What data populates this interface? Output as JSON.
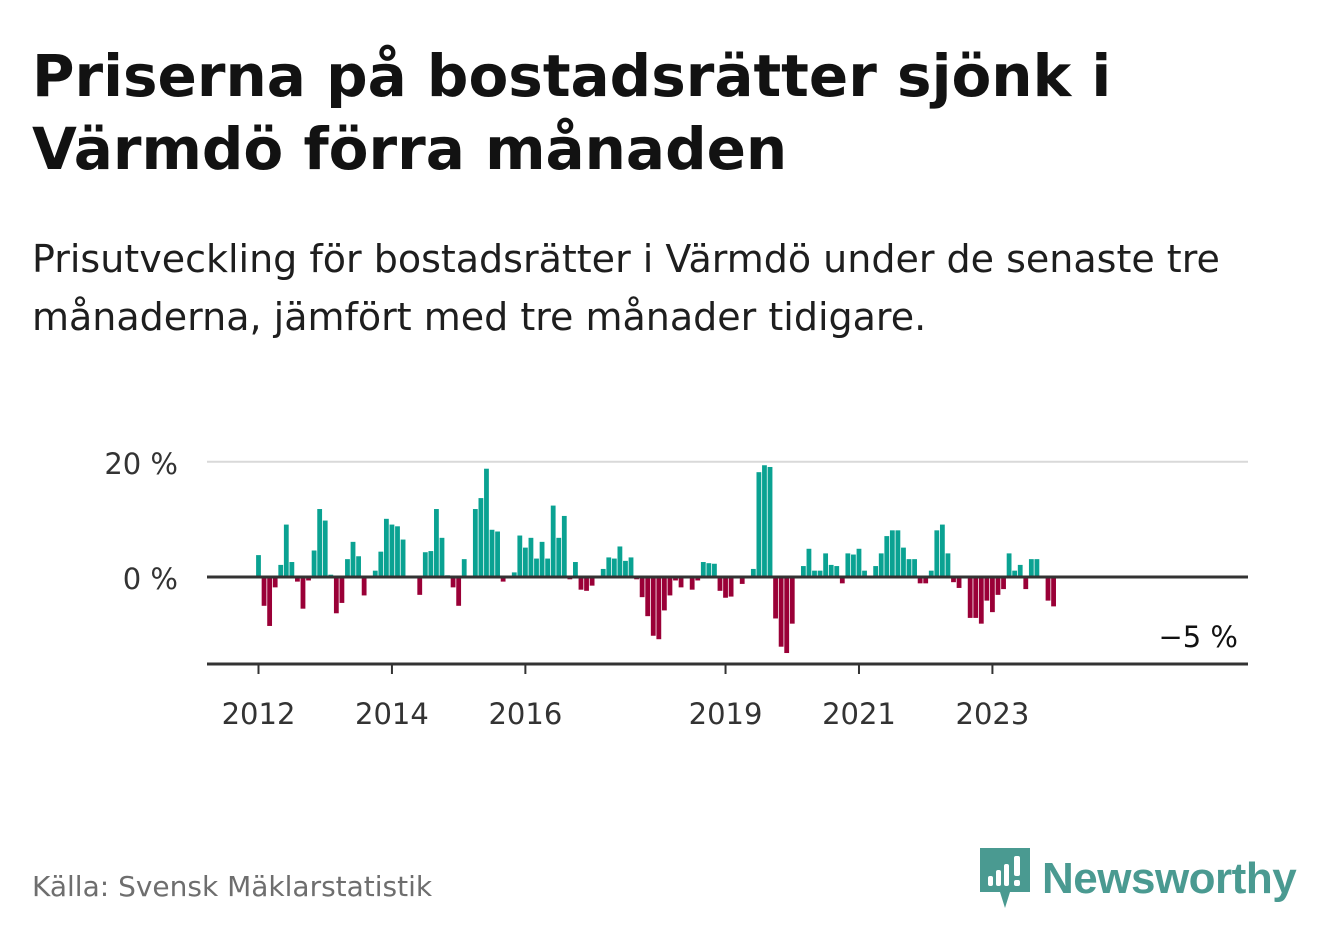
{
  "header": {
    "title": "Priserna på bostadsrätter sjönk i Värmdö förra månaden",
    "subtitle": "Prisutveckling för bostadsrätter i Värmdö under de senaste tre månaderna, jämfört med tre månader tidigare."
  },
  "footer": {
    "source": "Källa: Svensk Mäklarstatistik",
    "brand": "Newsworthy"
  },
  "colors": {
    "positive": "#0aa292",
    "negative": "#9a0037",
    "axis": "#333333",
    "grid": "#d9d9d9",
    "brand": "#4a9a91"
  },
  "chart_data": {
    "type": "bar",
    "x_start": "2012-01",
    "ylabel": "",
    "ylim": [
      -15,
      20
    ],
    "y_ticks": [
      {
        "value": 0,
        "label": "0 %"
      },
      {
        "value": 20,
        "label": "20 %"
      }
    ],
    "x_ticks": [
      {
        "index": 0,
        "label": "2012"
      },
      {
        "index": 24,
        "label": "2014"
      },
      {
        "index": 48,
        "label": "2016"
      },
      {
        "index": 84,
        "label": "2019"
      },
      {
        "index": 108,
        "label": "2021"
      },
      {
        "index": 132,
        "label": "2023"
      }
    ],
    "last_label": "−5 %",
    "values": [
      3.8,
      -5,
      -8.5,
      -1.8,
      2.1,
      9.1,
      2.6,
      -0.8,
      -5.5,
      -0.6,
      4.6,
      11.8,
      9.8,
      0.4,
      -6.3,
      -4.5,
      3.1,
      6.1,
      3.6,
      -3.2,
      0.1,
      1.1,
      4.4,
      10.1,
      9.1,
      8.8,
      6.5,
      0.1,
      -0.1,
      -3.1,
      4.3,
      4.5,
      11.8,
      6.8,
      0.3,
      -1.8,
      -5,
      3.1,
      0.1,
      11.8,
      13.7,
      18.8,
      8.2,
      7.9,
      -0.8,
      0.2,
      0.8,
      7.2,
      5.1,
      6.8,
      3.2,
      6.1,
      3.2,
      12.4,
      6.8,
      10.6,
      -0.4,
      2.6,
      -2.2,
      -2.4,
      -1.5,
      -0.1,
      1.4,
      3.4,
      3.2,
      5.3,
      2.8,
      3.4,
      -0.4,
      -3.5,
      -6.8,
      -10.2,
      -10.8,
      -5.8,
      -3.2,
      -0.6,
      -1.8,
      0.1,
      -2.2,
      -0.6,
      2.6,
      2.4,
      2.3,
      -2.4,
      -3.6,
      -3.4,
      0.1,
      -1.2,
      0.2,
      1.4,
      18.2,
      19.4,
      19.1,
      -7.2,
      -12.1,
      -13.2,
      -8.1,
      0.1,
      1.9,
      4.9,
      1.1,
      1.1,
      4.1,
      2.1,
      1.9,
      -1.1,
      4.1,
      3.9,
      4.9,
      1.1,
      0.1,
      1.9,
      4.1,
      7.1,
      8.1,
      8.1,
      5.1,
      3.1,
      3.1,
      -1.1,
      -1.1,
      1.1,
      8.1,
      9.1,
      4.1,
      -0.9,
      -1.9,
      0.1,
      -7.1,
      -7.1,
      -8.1,
      -4.1,
      -6.1,
      -3.1,
      -2.1,
      4.1,
      1.1,
      2.1,
      -2.1,
      3.1,
      3.1,
      0.1,
      -4.1,
      -5.1
    ]
  }
}
